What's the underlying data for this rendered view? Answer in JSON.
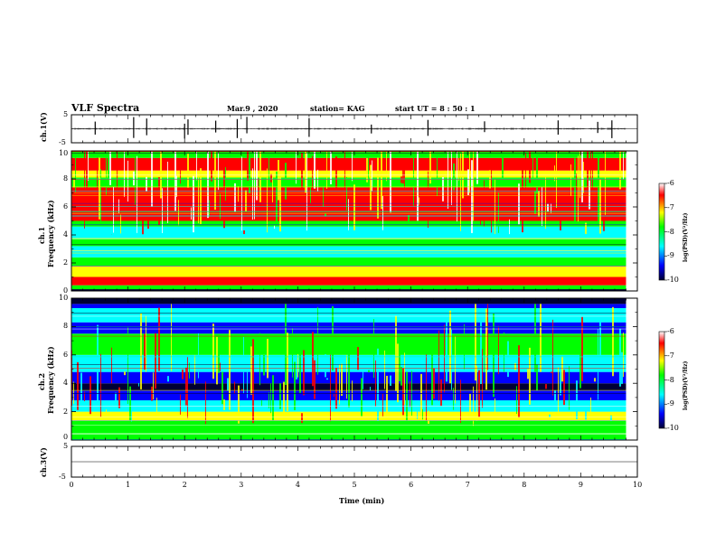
{
  "header": {
    "title": "VLF Spectra",
    "date": "Mar.9 , 2020",
    "station": "station= KAG",
    "start": "start UT = 8 : 50 : 1"
  },
  "colors": {
    "scale": [
      "#000033",
      "#0000ff",
      "#00ffff",
      "#00ff00",
      "#ffff00",
      "#ff0000",
      "#ffffff"
    ]
  },
  "chart_data": [
    {
      "type": "line",
      "panel": "ch1-waveform",
      "ylabel": "ch.1(V)",
      "ylim": [
        -5,
        5
      ],
      "yticks": [
        "5",
        "-5"
      ],
      "xlim": [
        0,
        10
      ]
    },
    {
      "type": "heatmap",
      "panel": "ch1-spectrogram",
      "ylabel": "ch.1\nFrequency (kHz)",
      "ylabel_lines": [
        "ch.1",
        "Frequency (kHz)"
      ],
      "ylim": [
        0,
        10
      ],
      "yticks": [
        "0",
        "2",
        "4",
        "6",
        "8",
        "10"
      ],
      "xlim": [
        0,
        10
      ],
      "data_end_min": 9.8,
      "colorbar": {
        "label": "log(PSD)(V²/Hz)",
        "ticks": [
          "-6",
          "-7",
          "-8",
          "-9",
          "-10"
        ],
        "range": [
          -10,
          -6
        ]
      }
    },
    {
      "type": "heatmap",
      "panel": "ch2-spectrogram",
      "ylabel": "ch.2\nFrequency (kHz)",
      "ylabel_lines": [
        "ch.2",
        "Frequency (kHz)"
      ],
      "ylim": [
        0,
        10
      ],
      "yticks": [
        "0",
        "2",
        "4",
        "6",
        "8",
        "10"
      ],
      "xlim": [
        0,
        10
      ],
      "data_end_min": 9.8,
      "colorbar": {
        "label": "log(PSD)(V²/Hz)",
        "ticks": [
          "-6",
          "-7",
          "-8",
          "-9",
          "-10"
        ],
        "range": [
          -10,
          -6
        ]
      }
    },
    {
      "type": "line",
      "panel": "ch3-waveform",
      "ylabel": "ch.3(V)",
      "ylim": [
        -5,
        5
      ],
      "yticks": [
        "5",
        "-5"
      ],
      "xlim": [
        0,
        10
      ]
    }
  ],
  "xaxis": {
    "label": "Time (min)",
    "ticks": [
      "0",
      "1",
      "2",
      "3",
      "4",
      "5",
      "6",
      "7",
      "8",
      "9",
      "10"
    ]
  }
}
